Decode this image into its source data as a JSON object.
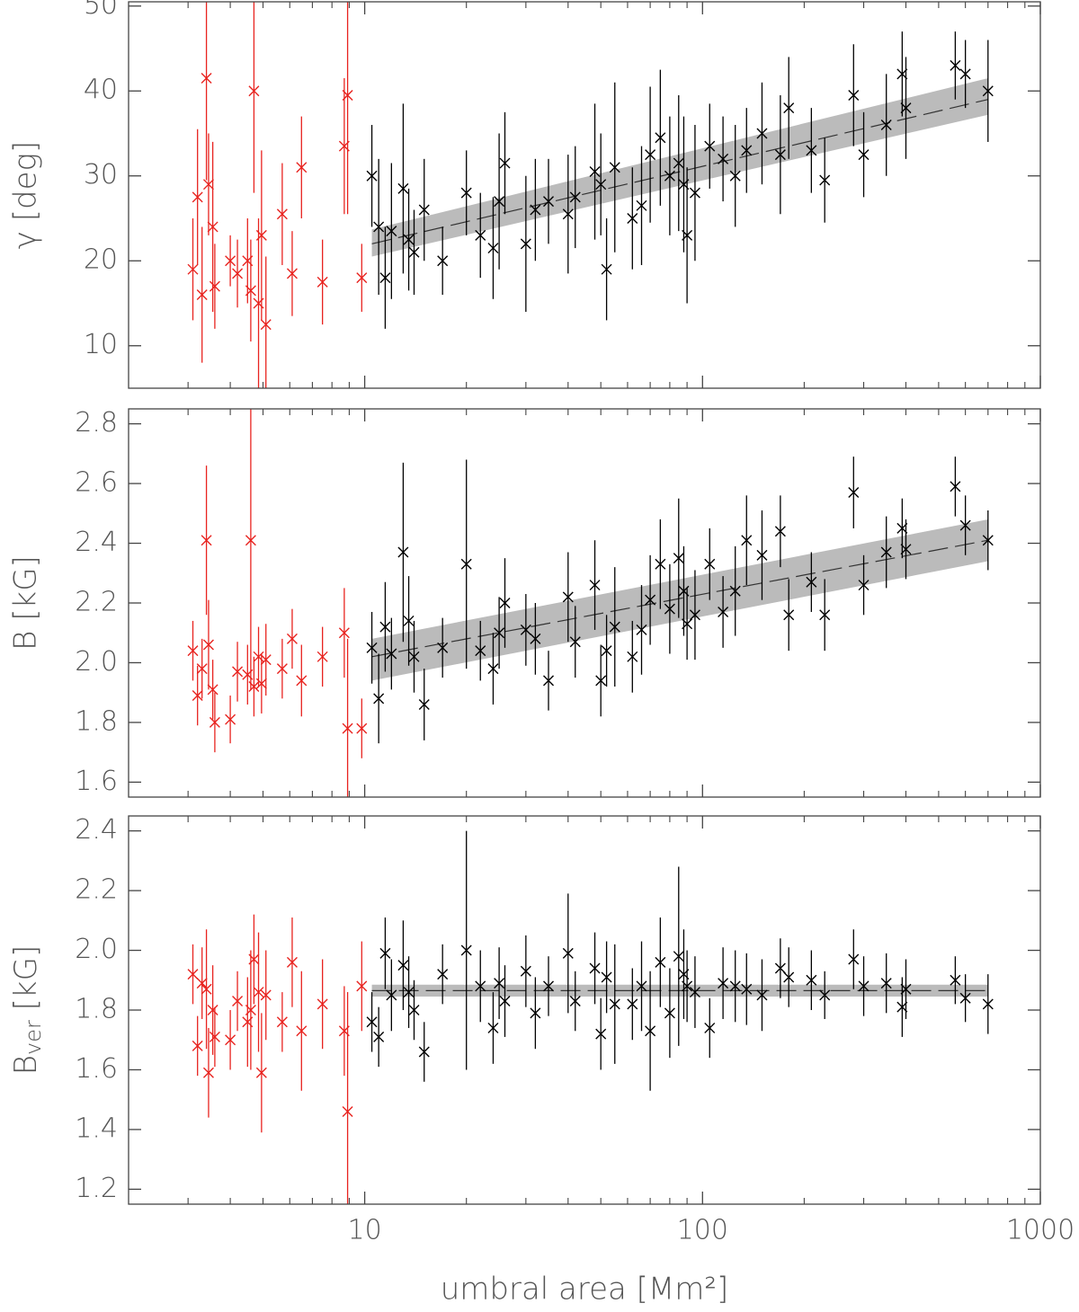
{
  "chart_data": [
    {
      "type": "scatter",
      "ylabel": "γ [deg]",
      "xscale": "log",
      "xlim": [
        2,
        1000
      ],
      "xticks": [
        10,
        100,
        1000
      ],
      "ylim": [
        5,
        50.5
      ],
      "yticks": [
        10,
        20,
        30,
        40,
        50
      ],
      "series": [
        {
          "color": "#e8231f",
          "x": [
            3.1,
            3.2,
            3.3,
            3.4,
            3.45,
            3.55,
            3.6,
            4.0,
            4.2,
            4.5,
            4.6,
            4.7,
            4.85,
            4.95,
            5.1,
            5.7,
            6.1,
            6.5,
            7.5,
            8.7,
            8.9,
            9.8
          ],
          "values": [
            19,
            27.5,
            16,
            41.5,
            29,
            24,
            17,
            20,
            18.5,
            20,
            16.5,
            40,
            15,
            23,
            12.5,
            25.5,
            18.5,
            31,
            17.5,
            33.5,
            39.5,
            18
          ],
          "errors": [
            6,
            8,
            8,
            12,
            6,
            10,
            5,
            3,
            4,
            5,
            6,
            12,
            10,
            10,
            8,
            6,
            5,
            6,
            5,
            8,
            14,
            4
          ]
        },
        {
          "color": "#000000",
          "x": [
            10.5,
            11,
            11.5,
            12,
            13,
            13.5,
            14,
            15,
            17,
            20,
            22,
            24,
            25,
            26,
            30,
            32,
            35,
            40,
            42,
            48,
            50,
            52,
            55,
            62,
            66,
            70,
            75,
            80,
            85,
            88,
            90,
            95,
            105,
            115,
            125,
            135,
            150,
            170,
            180,
            210,
            230,
            280,
            300,
            350,
            390,
            400,
            560,
            600,
            700
          ],
          "values": [
            30,
            24,
            18,
            23.5,
            28.5,
            22.5,
            21,
            26,
            20,
            28,
            23,
            21.5,
            27,
            31.5,
            22,
            26,
            27,
            25.5,
            27.5,
            30.5,
            29,
            19,
            31,
            25,
            26.5,
            32.5,
            34.5,
            30,
            31.5,
            29,
            23,
            28,
            33.5,
            32,
            30,
            33,
            35,
            32.5,
            38,
            33,
            29.5,
            39.5,
            32.5,
            36,
            42,
            38,
            43,
            42,
            40
          ],
          "errors": [
            6,
            8,
            6,
            8,
            10,
            6,
            5,
            6,
            4,
            5,
            5,
            6,
            8,
            6,
            8,
            6,
            5,
            7,
            6,
            8,
            6,
            6,
            10,
            6,
            7,
            8,
            8,
            7,
            8,
            8,
            8,
            8,
            5,
            5,
            6,
            5,
            6,
            7,
            6,
            5,
            5,
            6,
            5,
            6,
            5,
            6,
            4,
            4,
            6
          ]
        }
      ],
      "fit": {
        "color": "#bbbbbb",
        "x": [
          10.5,
          700
        ],
        "values": [
          22,
          39
        ],
        "lower": [
          20.5,
          37.2
        ],
        "upper": [
          23.7,
          41.5
        ]
      }
    },
    {
      "type": "scatter",
      "ylabel": "B [kG]",
      "xscale": "log",
      "xlim": [
        2,
        1000
      ],
      "xticks": [
        10,
        100,
        1000
      ],
      "ylim": [
        1.55,
        2.85
      ],
      "yticks": [
        1.6,
        1.8,
        {
          "value": 2,
          "label": "2.0"
        },
        2.2,
        2.4,
        2.6,
        2.8
      ],
      "series": [
        {
          "color": "#e8231f",
          "x": [
            3.1,
            3.2,
            3.3,
            3.4,
            3.45,
            3.55,
            3.6,
            4.0,
            4.2,
            4.5,
            4.6,
            4.7,
            4.85,
            4.95,
            5.1,
            5.7,
            6.1,
            6.5,
            7.5,
            8.7,
            8.9,
            9.8
          ],
          "values": [
            2.04,
            1.89,
            1.98,
            2.41,
            2.06,
            1.91,
            1.8,
            1.81,
            1.97,
            1.96,
            2.41,
            1.92,
            2.02,
            1.93,
            2.01,
            1.98,
            2.08,
            1.94,
            2.02,
            2.1,
            1.78,
            1.78
          ],
          "errors": [
            0.1,
            0.1,
            0.1,
            0.25,
            0.15,
            0.1,
            0.1,
            0.08,
            0.1,
            0.1,
            0.5,
            0.1,
            0.1,
            0.1,
            0.12,
            0.1,
            0.1,
            0.12,
            0.1,
            0.15,
            0.3,
            0.1
          ]
        },
        {
          "color": "#000000",
          "x": [
            10.5,
            11,
            11.5,
            12,
            13,
            13.5,
            14,
            15,
            17,
            20,
            22,
            24,
            25,
            26,
            30,
            32,
            35,
            40,
            42,
            48,
            50,
            52,
            55,
            62,
            66,
            70,
            75,
            80,
            85,
            88,
            90,
            95,
            105,
            115,
            125,
            135,
            150,
            170,
            180,
            210,
            230,
            280,
            300,
            350,
            390,
            400,
            560,
            600,
            700
          ],
          "values": [
            2.05,
            1.88,
            2.12,
            2.03,
            2.37,
            2.14,
            2.02,
            1.86,
            2.05,
            2.33,
            2.04,
            1.98,
            2.1,
            2.2,
            2.11,
            2.08,
            1.94,
            2.22,
            2.07,
            2.26,
            1.94,
            2.04,
            2.12,
            2.02,
            2.11,
            2.21,
            2.33,
            2.18,
            2.35,
            2.24,
            2.13,
            2.16,
            2.33,
            2.17,
            2.24,
            2.41,
            2.36,
            2.44,
            2.16,
            2.27,
            2.16,
            2.57,
            2.26,
            2.37,
            2.45,
            2.38,
            2.59,
            2.46,
            2.41
          ],
          "errors": [
            0.12,
            0.15,
            0.15,
            0.12,
            0.3,
            0.15,
            0.12,
            0.12,
            0.1,
            0.35,
            0.1,
            0.12,
            0.12,
            0.15,
            0.12,
            0.12,
            0.1,
            0.15,
            0.12,
            0.15,
            0.12,
            0.12,
            0.2,
            0.12,
            0.15,
            0.15,
            0.15,
            0.15,
            0.2,
            0.15,
            0.12,
            0.15,
            0.12,
            0.12,
            0.15,
            0.15,
            0.15,
            0.12,
            0.12,
            0.1,
            0.12,
            0.12,
            0.1,
            0.12,
            0.1,
            0.1,
            0.1,
            0.1,
            0.1
          ]
        }
      ],
      "fit": {
        "color": "#bbbbbb",
        "x": [
          10.5,
          700
        ],
        "values": [
          2.02,
          2.41
        ],
        "lower": [
          1.94,
          2.34
        ],
        "upper": [
          2.08,
          2.48
        ]
      }
    },
    {
      "type": "scatter",
      "ylabel": "B",
      "ylabel_sub": "ver",
      "ylabel_unit": "[kG]",
      "x_label": "umbral area [Mm²]",
      "xscale": "log",
      "xlim": [
        2,
        1000
      ],
      "xticks": [
        10,
        100,
        1000
      ],
      "ylim": [
        1.15,
        2.45
      ],
      "yticks": [
        1.2,
        1.4,
        1.6,
        1.8,
        {
          "value": 2,
          "label": "2.0"
        },
        2.2,
        2.4
      ],
      "series": [
        {
          "color": "#e8231f",
          "x": [
            3.1,
            3.2,
            3.3,
            3.4,
            3.45,
            3.55,
            3.6,
            4.0,
            4.2,
            4.5,
            4.6,
            4.7,
            4.85,
            4.95,
            5.1,
            5.7,
            6.1,
            6.5,
            7.5,
            8.7,
            8.9,
            9.8
          ],
          "values": [
            1.92,
            1.68,
            1.89,
            1.87,
            1.59,
            1.8,
            1.71,
            1.7,
            1.83,
            1.76,
            1.8,
            1.97,
            1.86,
            1.59,
            1.85,
            1.76,
            1.96,
            1.73,
            1.82,
            1.73,
            1.46,
            1.88
          ],
          "errors": [
            0.1,
            0.1,
            0.12,
            0.2,
            0.15,
            0.15,
            0.1,
            0.1,
            0.1,
            0.15,
            0.2,
            0.15,
            0.2,
            0.2,
            0.15,
            0.1,
            0.15,
            0.2,
            0.15,
            0.15,
            0.4,
            0.15
          ]
        },
        {
          "color": "#000000",
          "x": [
            10.5,
            11,
            11.5,
            12,
            13,
            13.5,
            14,
            15,
            17,
            20,
            22,
            24,
            25,
            26,
            30,
            32,
            35,
            40,
            42,
            48,
            50,
            52,
            55,
            62,
            66,
            70,
            75,
            80,
            85,
            88,
            90,
            95,
            105,
            115,
            125,
            135,
            150,
            170,
            180,
            210,
            230,
            280,
            300,
            350,
            390,
            400,
            560,
            600,
            700
          ],
          "values": [
            1.76,
            1.71,
            1.99,
            1.85,
            1.95,
            1.86,
            1.8,
            1.66,
            1.92,
            2.0,
            1.88,
            1.74,
            1.89,
            1.83,
            1.93,
            1.79,
            1.88,
            1.99,
            1.83,
            1.94,
            1.72,
            1.91,
            1.82,
            1.82,
            1.88,
            1.73,
            1.96,
            1.79,
            1.98,
            1.92,
            1.88,
            1.86,
            1.74,
            1.89,
            1.88,
            1.87,
            1.85,
            1.94,
            1.91,
            1.9,
            1.85,
            1.97,
            1.88,
            1.89,
            1.81,
            1.87,
            1.9,
            1.84,
            1.82
          ],
          "errors": [
            0.1,
            0.1,
            0.12,
            0.12,
            0.15,
            0.12,
            0.1,
            0.1,
            0.1,
            0.4,
            0.12,
            0.12,
            0.12,
            0.12,
            0.12,
            0.12,
            0.1,
            0.2,
            0.1,
            0.12,
            0.12,
            0.12,
            0.2,
            0.12,
            0.15,
            0.2,
            0.15,
            0.15,
            0.3,
            0.15,
            0.12,
            0.12,
            0.1,
            0.12,
            0.12,
            0.12,
            0.12,
            0.1,
            0.1,
            0.1,
            0.08,
            0.1,
            0.1,
            0.1,
            0.1,
            0.1,
            0.08,
            0.08,
            0.1
          ]
        }
      ],
      "fit": {
        "color": "#bbbbbb",
        "x": [
          10.5,
          700
        ],
        "values": [
          1.865,
          1.865
        ],
        "lower": [
          1.845,
          1.845
        ],
        "upper": [
          1.885,
          1.885
        ]
      }
    }
  ]
}
